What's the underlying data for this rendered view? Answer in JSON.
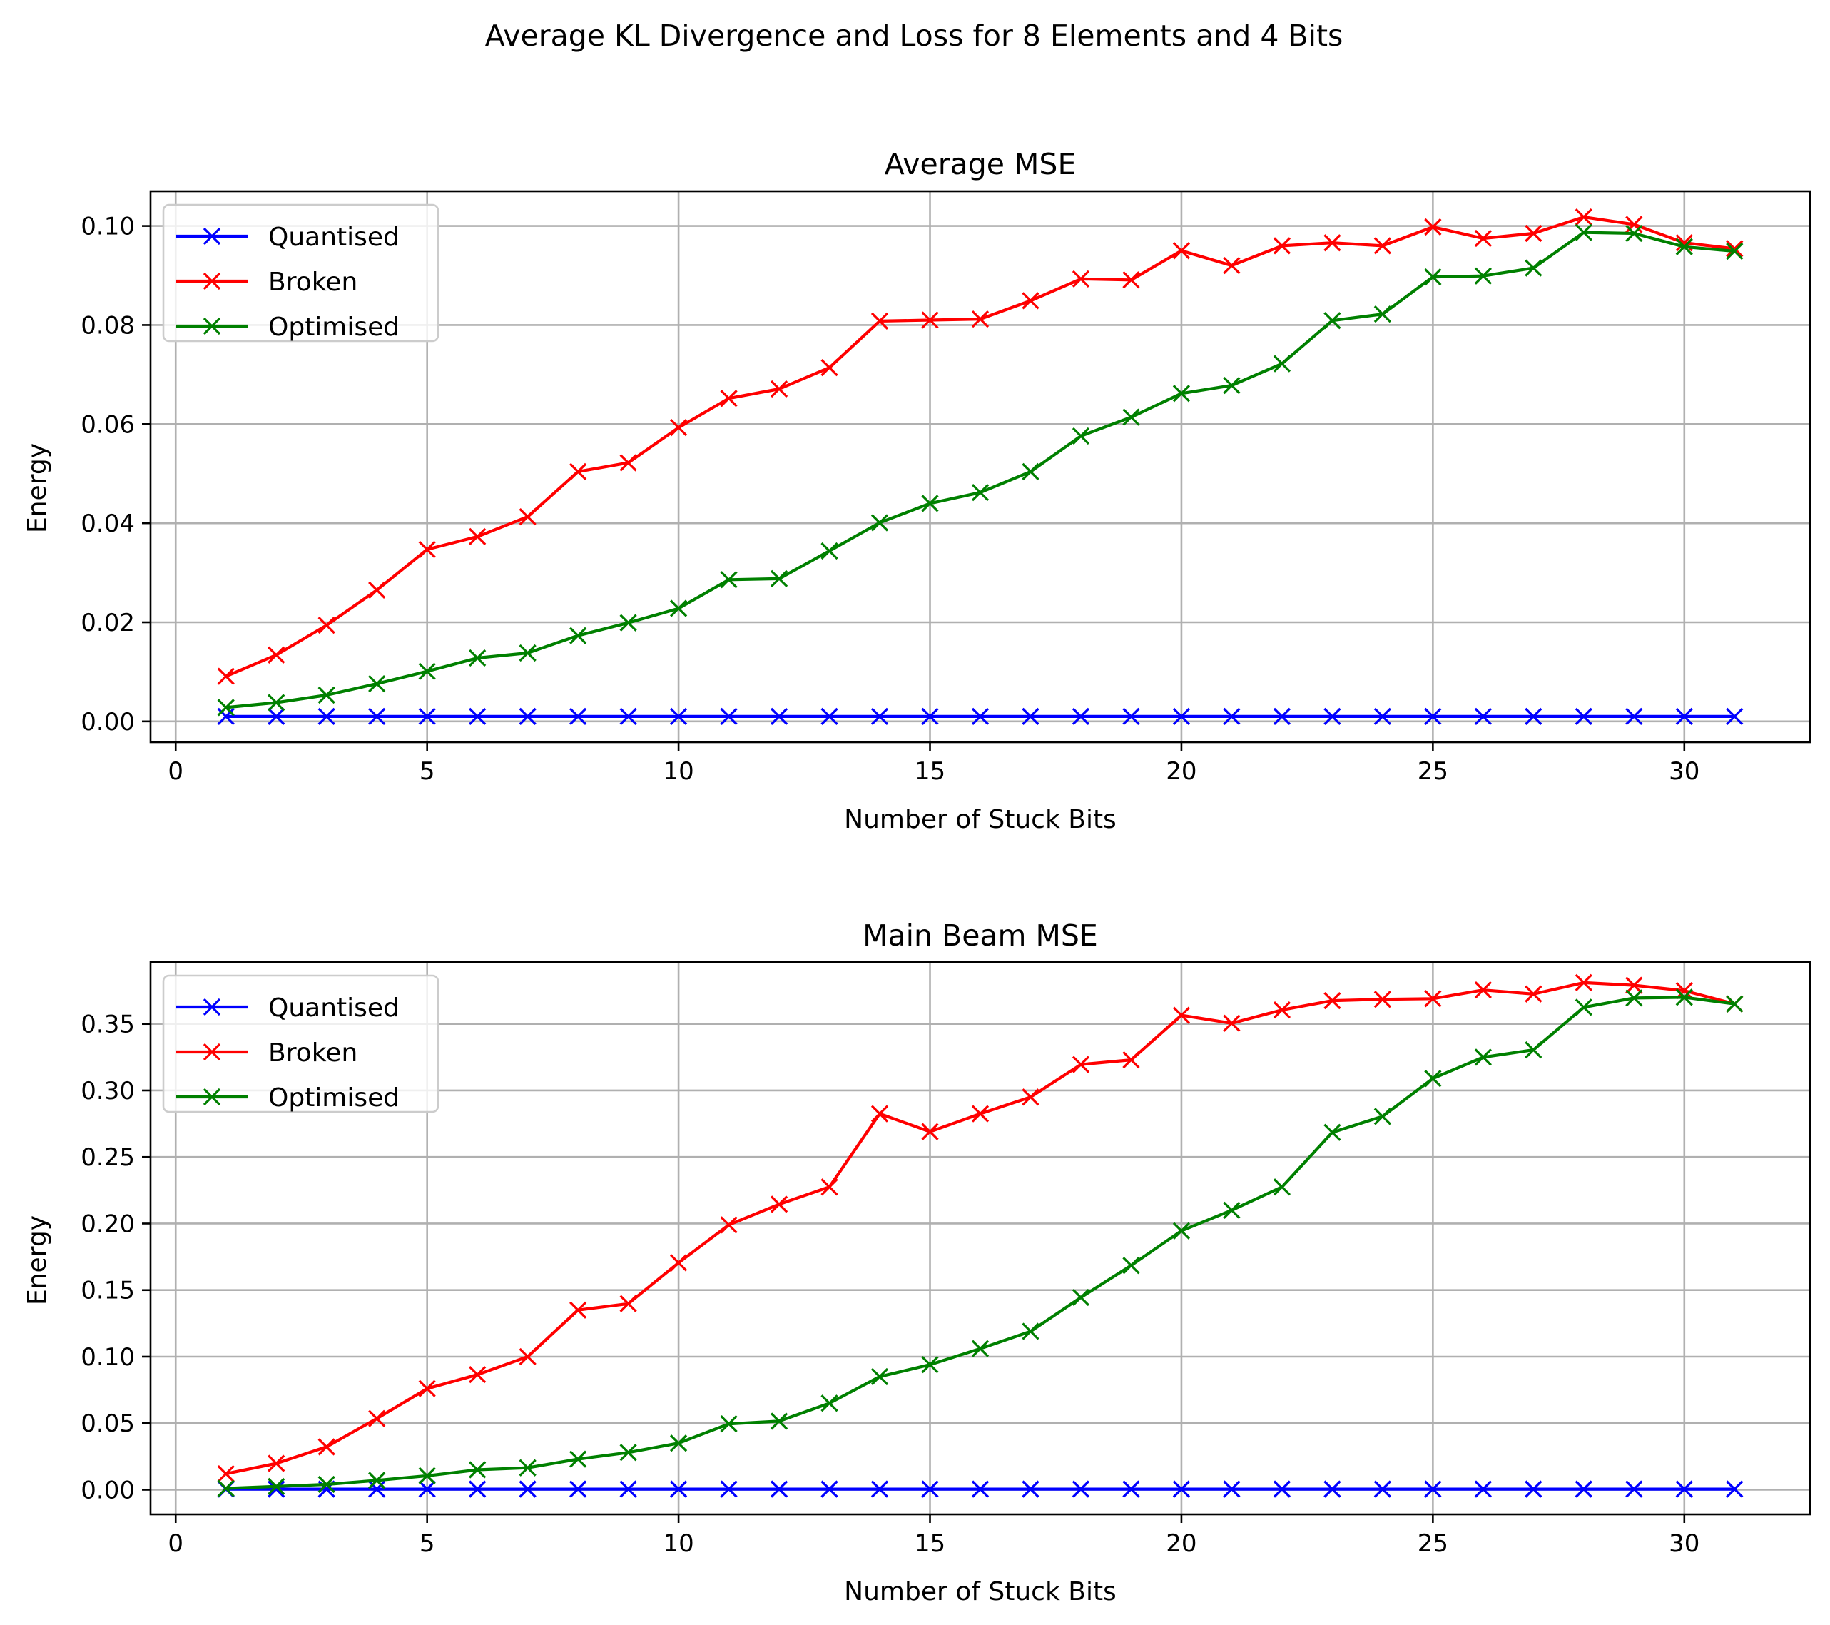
{
  "figure": {
    "suptitle": "Average KL Divergence and Loss for 8 Elements and 4 Bits"
  },
  "chart_data": [
    {
      "type": "line",
      "title": "Average MSE",
      "xlabel": "Number of Stuck Bits",
      "ylabel": "Energy",
      "xlim": [
        -0.5,
        32.5
      ],
      "ylim": [
        -0.0042,
        0.107
      ],
      "xticks": [
        0,
        5,
        10,
        15,
        20,
        25,
        30
      ],
      "xtick_labels": [
        "0",
        "5",
        "10",
        "15",
        "20",
        "25",
        "30"
      ],
      "yticks": [
        0.0,
        0.02,
        0.04,
        0.06,
        0.08,
        0.1
      ],
      "ytick_labels": [
        "0.00",
        "0.02",
        "0.04",
        "0.06",
        "0.08",
        "0.10"
      ],
      "grid": true,
      "legend": "upper-left",
      "x": [
        1,
        2,
        3,
        4,
        5,
        6,
        7,
        8,
        9,
        10,
        11,
        12,
        13,
        14,
        15,
        16,
        17,
        18,
        19,
        20,
        21,
        22,
        23,
        24,
        25,
        26,
        27,
        28,
        29,
        30,
        31
      ],
      "series": [
        {
          "name": "Quantised",
          "color": "#0000ff",
          "marker": "x",
          "values": [
            0.001,
            0.001,
            0.001,
            0.001,
            0.001,
            0.001,
            0.001,
            0.001,
            0.001,
            0.001,
            0.001,
            0.001,
            0.001,
            0.001,
            0.001,
            0.001,
            0.001,
            0.001,
            0.001,
            0.001,
            0.001,
            0.001,
            0.001,
            0.001,
            0.001,
            0.001,
            0.001,
            0.001,
            0.001,
            0.001,
            0.001
          ]
        },
        {
          "name": "Broken",
          "color": "#ff0000",
          "marker": "x",
          "values": [
            0.0091,
            0.0134,
            0.0194,
            0.0265,
            0.0347,
            0.0373,
            0.0413,
            0.0504,
            0.0522,
            0.0593,
            0.0652,
            0.0671,
            0.0714,
            0.0808,
            0.081,
            0.0812,
            0.0849,
            0.0893,
            0.0891,
            0.095,
            0.092,
            0.096,
            0.0966,
            0.096,
            0.0998,
            0.0975,
            0.0985,
            0.1018,
            0.1003,
            0.0966,
            0.0954
          ]
        },
        {
          "name": "Optimised",
          "color": "#008000",
          "marker": "x",
          "values": [
            0.0028,
            0.0038,
            0.0053,
            0.0076,
            0.0101,
            0.0128,
            0.0138,
            0.0173,
            0.0199,
            0.0228,
            0.0286,
            0.0288,
            0.0344,
            0.0401,
            0.044,
            0.0462,
            0.0504,
            0.0576,
            0.0614,
            0.0662,
            0.0678,
            0.0722,
            0.0809,
            0.0822,
            0.0897,
            0.0899,
            0.0915,
            0.0987,
            0.0985,
            0.0958,
            0.0949
          ]
        }
      ]
    },
    {
      "type": "line",
      "title": "Main Beam MSE",
      "xlabel": "Number of Stuck Bits",
      "ylabel": "Energy",
      "xlim": [
        -0.5,
        32.5
      ],
      "ylim": [
        -0.0185,
        0.3965
      ],
      "xticks": [
        0,
        5,
        10,
        15,
        20,
        25,
        30
      ],
      "xtick_labels": [
        "0",
        "5",
        "10",
        "15",
        "20",
        "25",
        "30"
      ],
      "yticks": [
        0.0,
        0.05,
        0.1,
        0.15,
        0.2,
        0.25,
        0.3,
        0.35
      ],
      "ytick_labels": [
        "0.00",
        "0.05",
        "0.10",
        "0.15",
        "0.20",
        "0.25",
        "0.30",
        "0.35"
      ],
      "grid": true,
      "legend": "upper-left",
      "x": [
        1,
        2,
        3,
        4,
        5,
        6,
        7,
        8,
        9,
        10,
        11,
        12,
        13,
        14,
        15,
        16,
        17,
        18,
        19,
        20,
        21,
        22,
        23,
        24,
        25,
        26,
        27,
        28,
        29,
        30,
        31
      ],
      "series": [
        {
          "name": "Quantised",
          "color": "#0000ff",
          "marker": "x",
          "values": [
            0.0005,
            0.0005,
            0.0005,
            0.0005,
            0.0005,
            0.0005,
            0.0005,
            0.0005,
            0.0005,
            0.0005,
            0.0005,
            0.0005,
            0.0005,
            0.0005,
            0.0005,
            0.0005,
            0.0005,
            0.0005,
            0.0005,
            0.0005,
            0.0005,
            0.0005,
            0.0005,
            0.0005,
            0.0005,
            0.0005,
            0.0005,
            0.0005,
            0.0005,
            0.0005,
            0.0005
          ]
        },
        {
          "name": "Broken",
          "color": "#ff0000",
          "marker": "x",
          "values": [
            0.012,
            0.0198,
            0.0322,
            0.0535,
            0.076,
            0.0865,
            0.1,
            0.135,
            0.1398,
            0.1705,
            0.199,
            0.2145,
            0.2275,
            0.2825,
            0.269,
            0.2825,
            0.295,
            0.3195,
            0.323,
            0.3565,
            0.3505,
            0.3605,
            0.3675,
            0.3685,
            0.369,
            0.3755,
            0.3725,
            0.381,
            0.379,
            0.375,
            0.365
          ]
        },
        {
          "name": "Optimised",
          "color": "#008000",
          "marker": "x",
          "values": [
            0.001,
            0.0025,
            0.004,
            0.007,
            0.0105,
            0.015,
            0.0165,
            0.023,
            0.028,
            0.035,
            0.0495,
            0.0515,
            0.065,
            0.085,
            0.094,
            0.106,
            0.119,
            0.1445,
            0.1685,
            0.1945,
            0.21,
            0.2275,
            0.2685,
            0.2805,
            0.309,
            0.325,
            0.3305,
            0.3625,
            0.3695,
            0.37,
            0.365
          ]
        }
      ]
    }
  ]
}
